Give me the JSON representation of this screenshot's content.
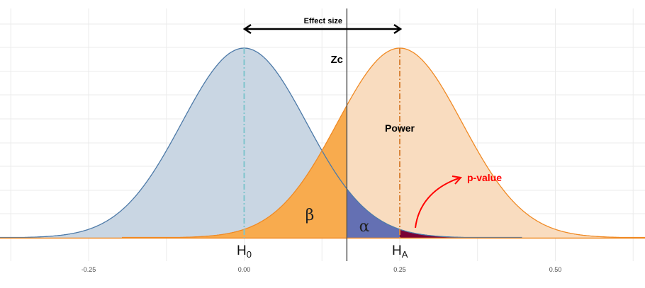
{
  "chart_data": {
    "type": "area",
    "title": "",
    "xlabel": "",
    "ylabel": "",
    "x_ticks": [
      -0.25,
      0.0,
      0.25,
      0.5
    ],
    "x_tick_labels": [
      "-0.25",
      "0.00",
      "0.25",
      "0.50"
    ],
    "xlim": [
      -0.375,
      0.645
    ],
    "grid": true,
    "legend": null,
    "series": [
      {
        "name": "H0 distribution",
        "type": "normal",
        "mean": 0.0,
        "sd": 0.1,
        "fill": "#c9d6e3",
        "stroke": "#4d7aa8"
      },
      {
        "name": "HA distribution",
        "type": "normal",
        "mean": 0.25,
        "sd": 0.1,
        "fill": "#f9dcbf",
        "stroke": "#f08a24"
      }
    ],
    "regions": [
      {
        "name": "beta",
        "label": "β",
        "description": "HA density left of Zc",
        "fill": "#f7a541"
      },
      {
        "name": "alpha",
        "label": "α",
        "description": "H0 density right of Zc",
        "fill": "#6470b3"
      },
      {
        "name": "p-value",
        "label": "p-value",
        "description": "H0 density right of HA",
        "fill": "#7a0035"
      }
    ],
    "critical_value": {
      "label": "Zc",
      "x": 0.165
    },
    "annotations": [
      {
        "text": "Effect size",
        "type": "double-arrow",
        "from": 0.0,
        "to": 0.25
      },
      {
        "text": "Power",
        "x": 0.25
      },
      {
        "text": "p-value",
        "color": "#ff0000",
        "type": "curved-arrow"
      },
      {
        "text": "H0",
        "x": 0.0
      },
      {
        "text": "HA",
        "x": 0.25
      }
    ]
  },
  "labels": {
    "effect_size": "Effect size",
    "zc": "Zc",
    "power": "Power",
    "p_value": "p-value",
    "beta": "β",
    "alpha": "α",
    "h0_main": "H",
    "h0_sub": "0",
    "ha_main": "H",
    "ha_sub": "A"
  },
  "colors": {
    "h0_fill": "#c9d6e3",
    "h0_stroke": "#4d7aa8",
    "ha_fill": "#f9dcbf",
    "ha_stroke": "#f08a24",
    "beta_fill": "#f7a541",
    "alpha_fill": "#6470b3",
    "pvalue_fill": "#7a0035",
    "h0_mean_line": "#7fc4cc",
    "ha_mean_line": "#d9853b",
    "arrow_red": "#ff0000",
    "grid": "#ebebeb",
    "tick_text": "#4d4d4d"
  }
}
